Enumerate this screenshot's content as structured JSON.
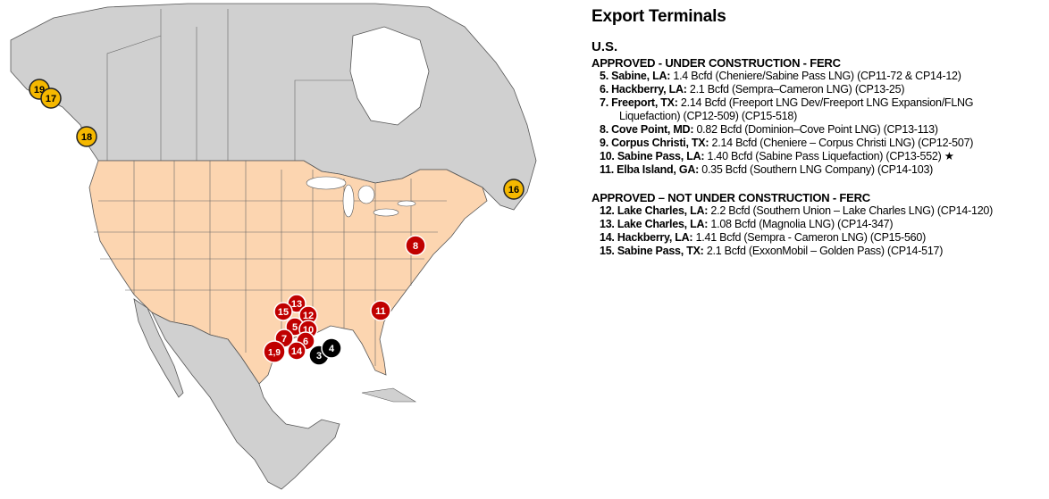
{
  "title": "Export Terminals",
  "region": "U.S.",
  "colors": {
    "approved_under_construction": "#c00000",
    "proposed_black": "#000000",
    "canada_yellow": "#f5b800",
    "us_land": "#fcd5b0",
    "other_land": "#d0d0d0",
    "water": "#ffffff"
  },
  "sections": [
    {
      "heading": "APPROVED - UNDER CONSTRUCTION - FERC",
      "items": [
        {
          "label": "5. Sabine, LA:",
          "detail": "1.4 Bcfd (Cheniere/Sabine Pass LNG) (CP11-72 & CP14-12)",
          "continuation": ""
        },
        {
          "label": "6. Hackberry, LA:",
          "detail": "2.1 Bcfd (Sempra–Cameron LNG) (CP13-25)",
          "continuation": ""
        },
        {
          "label": "7. Freeport, TX:",
          "detail": "2.14 Bcfd (Freeport LNG Dev/Freeport LNG Expansion/FLNG",
          "continuation": "Liquefaction) (CP12-509) (CP15-518)"
        },
        {
          "label": "8. Cove Point, MD:",
          "detail": "0.82 Bcfd (Dominion–Cove Point LNG) (CP13-113)",
          "continuation": ""
        },
        {
          "label": "9. Corpus Christi, TX:",
          "detail": "2.14 Bcfd (Cheniere – Corpus Christi LNG) (CP12-507)",
          "continuation": ""
        },
        {
          "label": "10. Sabine Pass, LA:",
          "detail": "1.40 Bcfd (Sabine Pass Liquefaction) (CP13-552) ★",
          "continuation": ""
        },
        {
          "label": "11. Elba Island, GA:",
          "detail": "0.35 Bcfd (Southern LNG Company) (CP14-103)",
          "continuation": ""
        }
      ]
    },
    {
      "heading": "APPROVED – NOT UNDER CONSTRUCTION - FERC",
      "items": [
        {
          "label": "12. Lake Charles, LA:",
          "detail": "2.2 Bcfd (Southern Union – Lake Charles LNG) (CP14-120)",
          "continuation": ""
        },
        {
          "label": "13. Lake Charles, LA:",
          "detail": "1.08 Bcfd (Magnolia LNG) (CP14-347)",
          "continuation": ""
        },
        {
          "label": "14. Hackberry, LA:",
          "detail": "1.41 Bcfd (Sempra - Cameron LNG) (CP15-560)",
          "continuation": ""
        },
        {
          "label": "15. Sabine Pass, TX:",
          "detail": "2.1 Bcfd (ExxonMobil – Golden Pass) (CP14-517)",
          "continuation": ""
        }
      ]
    }
  ],
  "markers": [
    {
      "label": "19",
      "type": "canada"
    },
    {
      "label": "17",
      "type": "canada"
    },
    {
      "label": "18",
      "type": "canada"
    },
    {
      "label": "16",
      "type": "canada"
    },
    {
      "label": "8",
      "type": "approved"
    },
    {
      "label": "11",
      "type": "approved"
    },
    {
      "label": "13",
      "type": "approved"
    },
    {
      "label": "15",
      "type": "approved"
    },
    {
      "label": "12",
      "type": "approved"
    },
    {
      "label": "5",
      "type": "approved"
    },
    {
      "label": "10",
      "type": "approved"
    },
    {
      "label": "7",
      "type": "approved"
    },
    {
      "label": "6",
      "type": "approved"
    },
    {
      "label": "14",
      "type": "approved"
    },
    {
      "label": "1,9",
      "type": "approved"
    },
    {
      "label": "3",
      "type": "black"
    },
    {
      "label": "4",
      "type": "black"
    }
  ]
}
